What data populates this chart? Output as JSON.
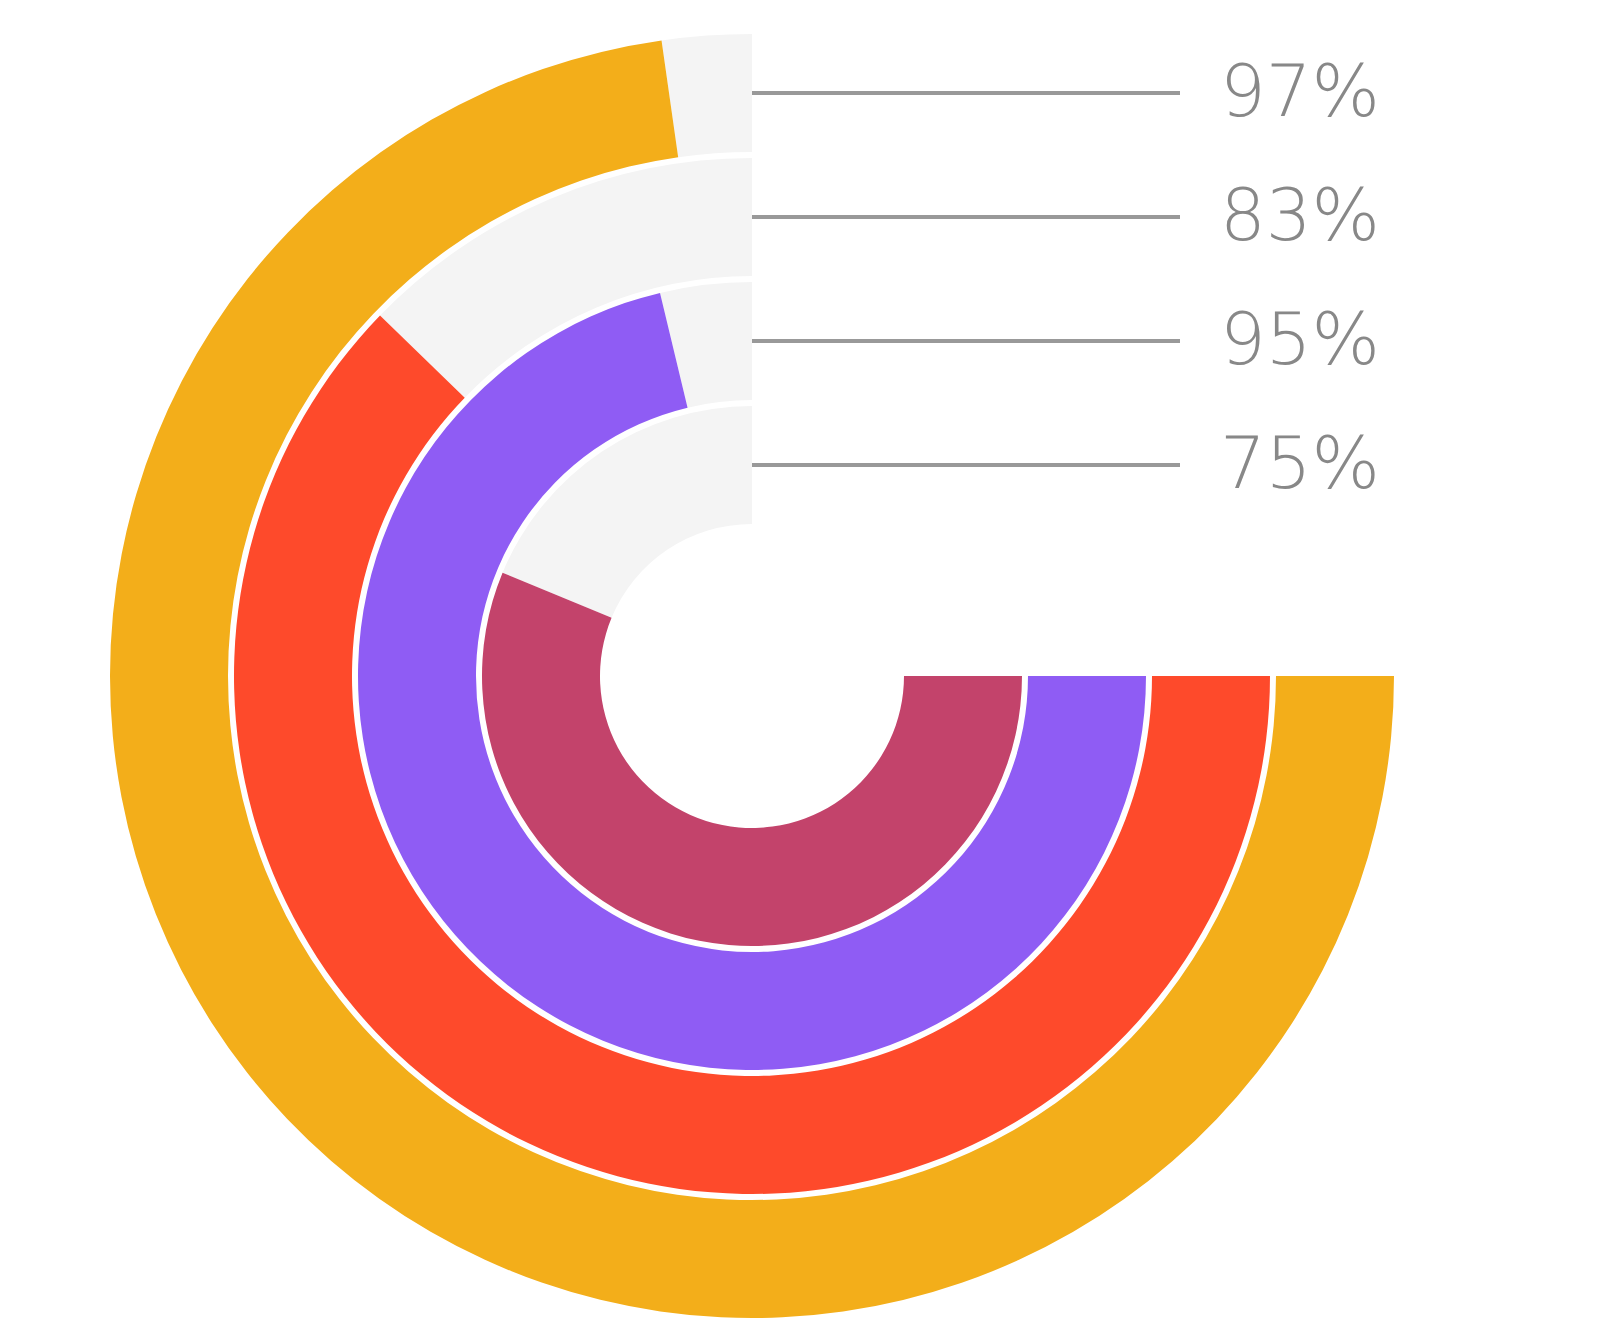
{
  "chart_data": {
    "type": "other",
    "categories": [
      null,
      null,
      null,
      null
    ],
    "values": [
      97,
      83,
      95,
      75
    ],
    "value_labels": [
      "97%",
      "83%",
      "95%",
      "75%"
    ],
    "colors": [
      "#f3ae1a",
      "#fe4a2b",
      "#8f5cf4",
      "#c3436b"
    ]
  }
}
